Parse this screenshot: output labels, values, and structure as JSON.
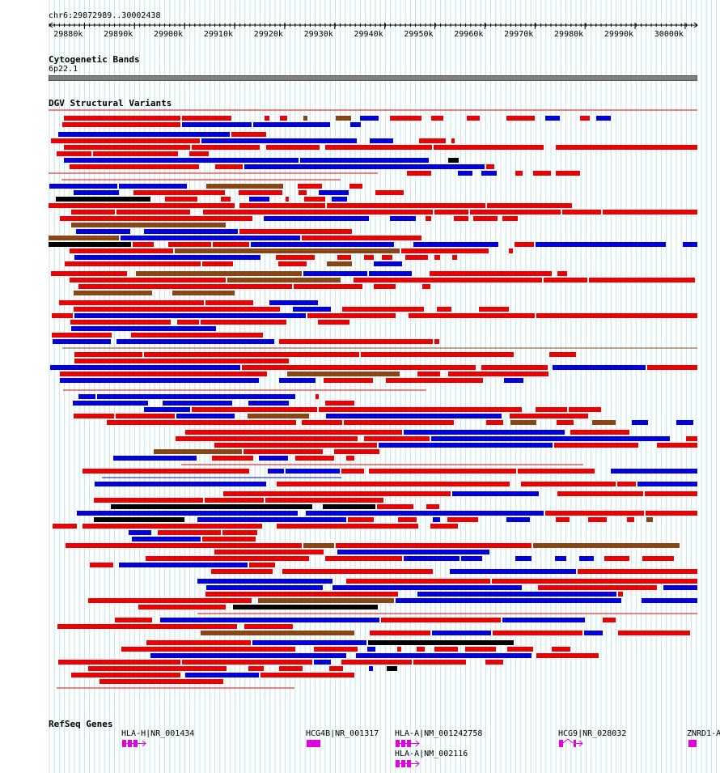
{
  "location": "chr6:29872989..30002438",
  "ruler": {
    "start": 29872989,
    "end": 30002438,
    "ticks": [
      "29880k",
      "29890k",
      "29900k",
      "29910k",
      "29920k",
      "29930k",
      "29940k",
      "29950k",
      "29960k",
      "29970k",
      "29980k",
      "29990k",
      "30000k"
    ]
  },
  "cytoband": {
    "title": "Cytogenetic Bands",
    "label": "6p22.1"
  },
  "dgv": {
    "title": "DGV Structural Variants",
    "colors": {
      "red": "#ee0000",
      "blue": "#0000e0",
      "brown": "#8b4513",
      "black": "#000000"
    }
  },
  "refseq": {
    "title": "RefSeq Genes",
    "color": "#e000e0",
    "genes": [
      {
        "label": "HLA-H|NR_001434"
      },
      {
        "label": "HCG4B|NR_001317"
      },
      {
        "label": "HLA-A|NM_001242758"
      },
      {
        "label": "HLA-A|NM_002116"
      },
      {
        "label": "HCG9|NR_028032"
      },
      {
        "label": "ZNRD1-A"
      }
    ]
  }
}
